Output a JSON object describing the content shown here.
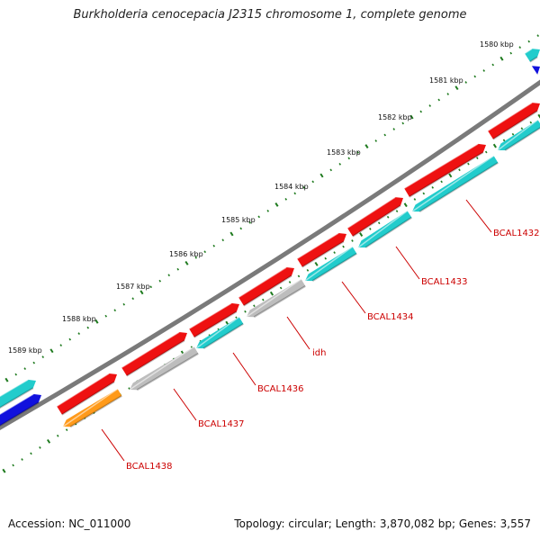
{
  "title": "Burkholderia cenocepacia J2315 chromosome 1, complete genome",
  "footer": {
    "accession": "Accession: NC_011000",
    "summary": "Topology: circular; Length: 3,870,082 bp; Genes: 3,557"
  },
  "colors": {
    "backbone": "#7a7a7a",
    "tick": "#1e7a1e",
    "gene_red": "#ee1111",
    "gene_cyan": "#22cccc",
    "gene_gray": "#bdbdbd",
    "gene_orange": "#ff9a1a",
    "gene_blue": "#1111dd",
    "label": "#cc0000"
  },
  "scale_labels": [
    "1580 kbp",
    "1581 kbp",
    "1582 kbp",
    "1583 kbp",
    "1584 kbp",
    "1585 kbp",
    "1586 kbp",
    "1587 kbp",
    "1588 kbp",
    "1589 kbp"
  ],
  "gene_labels": [
    "BCAL1432",
    "BCAL1433",
    "BCAL1434",
    "idh",
    "BCAL1436",
    "BCAL1437",
    "BCAL1438"
  ]
}
